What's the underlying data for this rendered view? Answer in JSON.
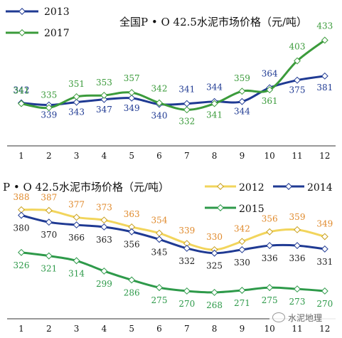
{
  "chart_data": [
    {
      "type": "line",
      "title": "全国P • O 42.5水泥市场价格（元/吨）",
      "xlabel": "",
      "ylabel": "",
      "categories": [
        "1",
        "2",
        "3",
        "4",
        "5",
        "6",
        "7",
        "8",
        "9",
        "10",
        "11",
        "12"
      ],
      "ylim": [
        290,
        450
      ],
      "grid": false,
      "legend": "top-left",
      "series": [
        {
          "name": "2013",
          "color": "#1f3a93",
          "label_color": "#1f3a93",
          "values": [
            342,
            339,
            343,
            347,
            349,
            340,
            341,
            344,
            344,
            364,
            375,
            381
          ]
        },
        {
          "name": "2017",
          "color": "#3b9b3b",
          "label_color": "#3b9b3b",
          "values": [
            341,
            335,
            351,
            353,
            357,
            342,
            332,
            341,
            359,
            361,
            403,
            433
          ]
        }
      ]
    },
    {
      "type": "line",
      "title": "P • O 42.5水泥市场价格（元/吨）",
      "xlabel": "",
      "ylabel": "",
      "categories": [
        "1",
        "2",
        "3",
        "4",
        "5",
        "6",
        "7",
        "8",
        "9",
        "10",
        "11",
        "12"
      ],
      "ylim": [
        240,
        395
      ],
      "grid": false,
      "legend": "top-right",
      "series": [
        {
          "name": "2012",
          "color": "#f2d55c",
          "label_color": "#e08a2c",
          "values": [
            388,
            387,
            377,
            373,
            363,
            354,
            339,
            330,
            342,
            356,
            359,
            349
          ]
        },
        {
          "name": "2014",
          "color": "#1f3a93",
          "label_color": "#222222",
          "values": [
            380,
            370,
            366,
            363,
            356,
            345,
            332,
            325,
            330,
            336,
            336,
            331
          ]
        },
        {
          "name": "2015",
          "color": "#2e9a4a",
          "label_color": "#2e9a4a",
          "values": [
            326,
            321,
            314,
            299,
            286,
            275,
            270,
            268,
            271,
            275,
            273,
            270
          ]
        }
      ]
    }
  ],
  "watermark": {
    "icon": "wechat-icon",
    "text": "水泥地理"
  }
}
